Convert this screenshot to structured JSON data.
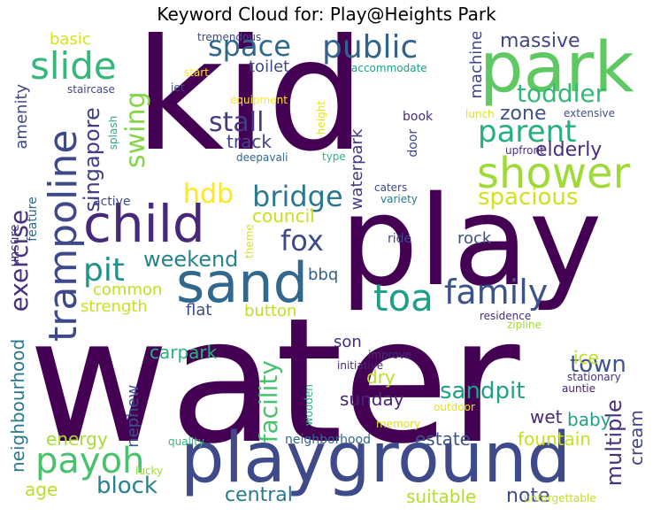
{
  "title": "Keyword Cloud for: Play@Heights Park",
  "words": [
    {
      "text": "water",
      "color": "#440154",
      "rotate": false
    },
    {
      "text": "kid",
      "color": "#440154",
      "rotate": false
    },
    {
      "text": "play",
      "color": "#440154",
      "rotate": false
    },
    {
      "text": "playground",
      "color": "#3e4a89",
      "rotate": false
    },
    {
      "text": "park",
      "color": "#5ec962",
      "rotate": false
    },
    {
      "text": "sand",
      "color": "#31688e",
      "rotate": false
    },
    {
      "text": "child",
      "color": "#482878",
      "rotate": false
    },
    {
      "text": "shower",
      "color": "#a0da39",
      "rotate": false
    },
    {
      "text": "trampoline",
      "color": "#3e4989",
      "rotate": true
    },
    {
      "text": "slide",
      "color": "#35b779",
      "rotate": false
    },
    {
      "text": "toa",
      "color": "#1f9e89",
      "rotate": false
    },
    {
      "text": "payoh",
      "color": "#4ac16d",
      "rotate": false
    },
    {
      "text": "family",
      "color": "#3b528b",
      "rotate": false
    },
    {
      "text": "parent",
      "color": "#26ad81",
      "rotate": false
    },
    {
      "text": "public",
      "color": "#33638d",
      "rotate": false
    },
    {
      "text": "pit",
      "color": "#21918c",
      "rotate": false
    },
    {
      "text": "space",
      "color": "#31688e",
      "rotate": false
    },
    {
      "text": "swing",
      "color": "#86d549",
      "rotate": true
    },
    {
      "text": "bridge",
      "color": "#2a788e",
      "rotate": false
    },
    {
      "text": "fox",
      "color": "#3e4989",
      "rotate": false
    },
    {
      "text": "stall",
      "color": "#443b84",
      "rotate": false
    },
    {
      "text": "hdb",
      "color": "#fde725",
      "rotate": false
    },
    {
      "text": "facility",
      "color": "#4ac16d",
      "rotate": true
    },
    {
      "text": "toddler",
      "color": "#35b779",
      "rotate": false
    },
    {
      "text": "block",
      "color": "#26828e",
      "rotate": false
    },
    {
      "text": "exercise",
      "color": "#46327e",
      "rotate": true
    },
    {
      "text": "spacious",
      "color": "#d2e21b",
      "rotate": false
    },
    {
      "text": "singapore",
      "color": "#433e85",
      "rotate": true
    },
    {
      "text": "weekend",
      "color": "#25848e",
      "rotate": false
    },
    {
      "text": "sandpit",
      "color": "#1fa187",
      "rotate": false
    },
    {
      "text": "town",
      "color": "#3b528b",
      "rotate": false
    },
    {
      "text": "elderly",
      "color": "#472d7b",
      "rotate": false
    },
    {
      "text": "track",
      "color": "#414487",
      "rotate": false
    },
    {
      "text": "zone",
      "color": "#3b528b",
      "rotate": false
    },
    {
      "text": "multiple",
      "color": "#46327e",
      "rotate": true
    },
    {
      "text": "neighbourhood",
      "color": "#2a788e",
      "rotate": true
    },
    {
      "text": "massive",
      "color": "#404688",
      "rotate": false
    },
    {
      "text": "fountain",
      "color": "#c8e020",
      "rotate": false
    },
    {
      "text": "machine",
      "color": "#3f4788",
      "rotate": true
    },
    {
      "text": "waterpark",
      "color": "#443983",
      "rotate": true
    },
    {
      "text": "council",
      "color": "#c8e020",
      "rotate": false
    },
    {
      "text": "dry",
      "color": "#b8de29",
      "rotate": false
    },
    {
      "text": "sunday",
      "color": "#482475",
      "rotate": false
    },
    {
      "text": "estate",
      "color": "#3b528b",
      "rotate": false
    },
    {
      "text": "suitable",
      "color": "#b5de2b",
      "rotate": false
    },
    {
      "text": "note",
      "color": "#3e4989",
      "rotate": false
    },
    {
      "text": "central",
      "color": "#2a788e",
      "rotate": false
    },
    {
      "text": "age",
      "color": "#b8de29",
      "rotate": false
    },
    {
      "text": "energy",
      "color": "#a8db34",
      "rotate": false
    },
    {
      "text": "baby",
      "color": "#1fa187",
      "rotate": false
    },
    {
      "text": "wet",
      "color": "#482878",
      "rotate": false
    },
    {
      "text": "ice",
      "color": "#bddf26",
      "rotate": false
    },
    {
      "text": "cream",
      "color": "#414487",
      "rotate": true
    },
    {
      "text": "rock",
      "color": "#3b528b",
      "rotate": false
    },
    {
      "text": "carpark",
      "color": "#2db27d",
      "rotate": false
    },
    {
      "text": "nephew",
      "color": "#3b528b",
      "rotate": true
    },
    {
      "text": "common",
      "color": "#c2df23",
      "rotate": false
    },
    {
      "text": "strength",
      "color": "#c8e020",
      "rotate": false
    },
    {
      "text": "button",
      "color": "#bddf26",
      "rotate": false
    },
    {
      "text": "flat",
      "color": "#3e4a89",
      "rotate": false
    },
    {
      "text": "bbq",
      "color": "#355f8d",
      "rotate": false
    },
    {
      "text": "son",
      "color": "#472c7a",
      "rotate": false
    },
    {
      "text": "amenity",
      "color": "#3e4989",
      "rotate": true
    },
    {
      "text": "basic",
      "color": "#d8e219",
      "rotate": false
    },
    {
      "text": "toilet",
      "color": "#3e4989",
      "rotate": false
    },
    {
      "text": "neighborhood",
      "color": "#31688e",
      "rotate": false
    },
    {
      "text": "book",
      "color": "#472d7b",
      "rotate": false
    },
    {
      "text": "door",
      "color": "#3e4989",
      "rotate": true
    },
    {
      "text": "active",
      "color": "#3e4989",
      "rotate": false
    },
    {
      "text": "feature",
      "color": "#31688e",
      "rotate": true
    },
    {
      "text": "unsure",
      "color": "#46327e",
      "rotate": true
    },
    {
      "text": "ride",
      "color": "#3e4989",
      "rotate": false
    },
    {
      "text": "theme",
      "color": "#d8e219",
      "rotate": true
    },
    {
      "text": "quality",
      "color": "#35b779",
      "rotate": false
    },
    {
      "text": "lucky",
      "color": "#a0da39",
      "rotate": false
    },
    {
      "text": "wooden",
      "color": "#2db27d",
      "rotate": true
    },
    {
      "text": "memory",
      "color": "#d8e219",
      "rotate": false
    },
    {
      "text": "outdoor",
      "color": "#e5e419",
      "rotate": false
    },
    {
      "text": "unforgettable",
      "color": "#c2df23",
      "rotate": false
    },
    {
      "text": "residence",
      "color": "#472d7b",
      "rotate": false
    },
    {
      "text": "zipline",
      "color": "#a0da39",
      "rotate": false
    },
    {
      "text": "improve",
      "color": "#472d7b",
      "rotate": false
    },
    {
      "text": "initiative",
      "color": "#482878",
      "rotate": false
    },
    {
      "text": "stationary",
      "color": "#46327e",
      "rotate": false
    },
    {
      "text": "auntie",
      "color": "#482173",
      "rotate": false
    },
    {
      "text": "tremendous",
      "color": "#3e4989",
      "rotate": false
    },
    {
      "text": "start",
      "color": "#fde725",
      "rotate": false
    },
    {
      "text": "accommodate",
      "color": "#1f9e89",
      "rotate": false
    },
    {
      "text": "staircase",
      "color": "#3e4989",
      "rotate": false
    },
    {
      "text": "jet",
      "color": "#3e4989",
      "rotate": false
    },
    {
      "text": "equipment",
      "color": "#fde725",
      "rotate": false
    },
    {
      "text": "splash",
      "color": "#26ad81",
      "rotate": true
    },
    {
      "text": "height",
      "color": "#e5e419",
      "rotate": true
    },
    {
      "text": "lunch",
      "color": "#d8e219",
      "rotate": false
    },
    {
      "text": "extensive",
      "color": "#3b528b",
      "rotate": false
    },
    {
      "text": "upfront",
      "color": "#46327e",
      "rotate": false
    },
    {
      "text": "type",
      "color": "#2db27d",
      "rotate": false
    },
    {
      "text": "deepavali",
      "color": "#31688e",
      "rotate": false
    },
    {
      "text": "caters",
      "color": "#3e4989",
      "rotate": false
    },
    {
      "text": "variety",
      "color": "#2a788e",
      "rotate": false
    }
  ]
}
